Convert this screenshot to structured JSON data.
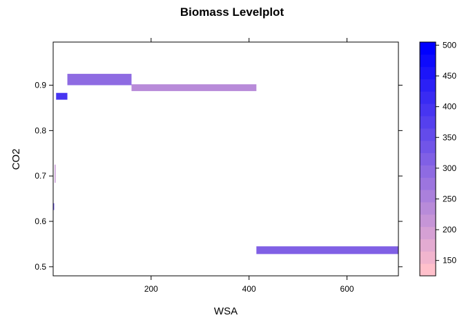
{
  "chart_data": {
    "type": "heatmap",
    "title": "Biomass Levelplot",
    "xlabel": "WSA",
    "ylabel": "CO2",
    "xlim": [
      0,
      705
    ],
    "ylim": [
      0.48,
      0.995
    ],
    "x_ticks": [
      200,
      400,
      600
    ],
    "y_ticks": [
      0.5,
      0.6,
      0.7,
      0.8,
      0.9
    ],
    "x_tick_labels": [
      "200",
      "400",
      "600"
    ],
    "y_tick_labels": [
      "0.5",
      "0.6",
      "0.7",
      "0.8",
      "0.9"
    ],
    "colorkey": {
      "range": [
        125,
        505
      ],
      "low_color": "#FFC0CB",
      "high_color": "#0000FF",
      "bins": 19,
      "ticks": [
        150,
        200,
        250,
        300,
        350,
        400,
        450,
        500
      ],
      "tick_labels": [
        "150",
        "200",
        "250",
        "300",
        "350",
        "400",
        "450",
        "500"
      ]
    },
    "grid": false,
    "cells": [
      {
        "x0": 29,
        "x1": 160,
        "y0": 0.9,
        "y1": 0.925,
        "value": 300
      },
      {
        "x0": 160,
        "x1": 415,
        "y0": 0.887,
        "y1": 0.902,
        "value": 230
      },
      {
        "x0": 6,
        "x1": 29,
        "y0": 0.868,
        "y1": 0.883,
        "value": 395
      },
      {
        "x0": 415,
        "x1": 705,
        "y0": 0.528,
        "y1": 0.545,
        "value": 305
      },
      {
        "x0": 3,
        "x1": 5,
        "y0": 0.685,
        "y1": 0.725,
        "value": 215
      },
      {
        "x0": 0,
        "x1": 2,
        "y0": 0.625,
        "y1": 0.64,
        "value": 345
      }
    ]
  }
}
